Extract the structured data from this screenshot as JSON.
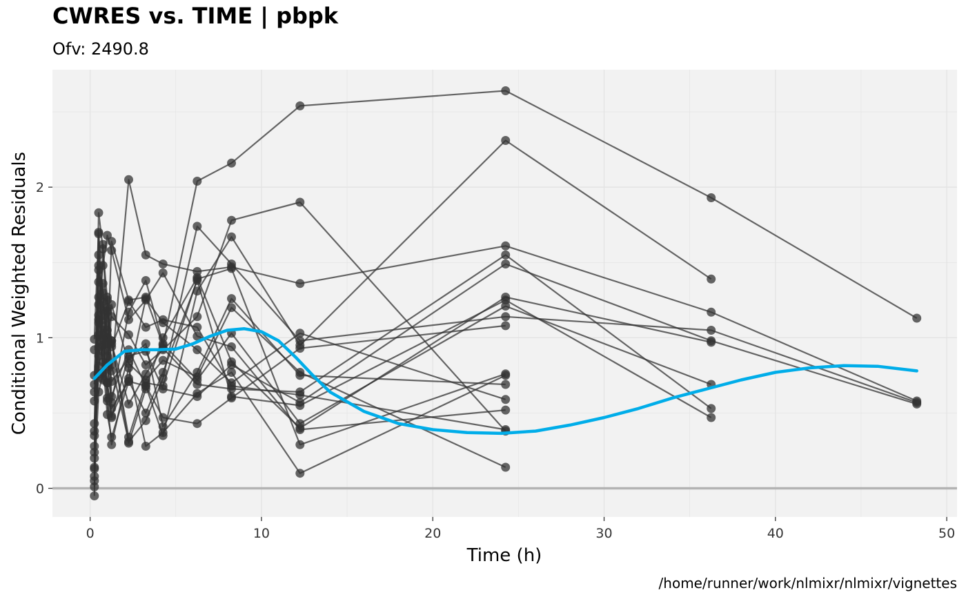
{
  "chart_data": {
    "type": "scatter",
    "title": "CWRES vs. TIME | pbpk",
    "subtitle": "Ofv: 2490.8",
    "xlabel": "Time (h)",
    "ylabel": "Conditional Weighted Residuals",
    "caption": "/home/runner/work/nlmixr/nlmixr/vignettes",
    "xlim": [
      -2.2,
      50.6
    ],
    "ylim": [
      -0.19,
      2.78
    ],
    "x_ticks": [
      0,
      10,
      20,
      30,
      40,
      50
    ],
    "y_ticks": [
      0,
      1,
      2
    ],
    "grid": true,
    "reference_line": {
      "y": 0,
      "color": "#b3b3b3"
    },
    "colors": {
      "points": "#333333",
      "lines": "#333333",
      "smooth": "#00ade9",
      "panel": "#f2f2f2",
      "grid": "#e3e3e3"
    },
    "times": [
      0.25,
      0.5,
      0.75,
      1,
      1.25,
      2.25,
      3.25,
      4.25,
      6.25,
      8.25,
      12.25,
      24.25,
      36.25,
      48.25
    ],
    "series": [
      {
        "values": [
          0.38,
          1.83,
          1.59,
          1.25,
          0.78,
          2.05,
          1.55,
          1.49,
          1.44,
          1.47,
          1.36,
          1.61,
          1.17,
          0.58
        ]
      },
      {
        "values": [
          0.75,
          1.45,
          1.3,
          0.83,
          1.64,
          1.25,
          1.27,
          0.95,
          2.04,
          2.16,
          2.54,
          2.64,
          1.93,
          1.13
        ]
      },
      {
        "values": [
          0.69,
          1.27,
          1.12,
          1.18,
          0.61,
          0.92,
          0.68,
          0.47,
          0.43,
          0.6,
          0.93,
          1.08
        ]
      },
      {
        "values": [
          0.99,
          1.7,
          1.18,
          1.0,
          0.53,
          0.71,
          0.68,
          0.35,
          1.31,
          1.67,
          0.95,
          2.31,
          1.39
        ]
      },
      {
        "values": [
          0.24,
          1.1,
          1.02,
          0.58,
          0.29,
          0.8,
          0.28,
          0.37,
          0.63,
          0.77,
          0.1,
          0.75
        ]
      },
      {
        "values": [
          0.64,
          1.02,
          0.84,
          0.49,
          0.34,
          0.71,
          0.5,
          0.77,
          1.38,
          0.61,
          0.55,
          1.25,
          0.47
        ]
      },
      {
        "values": [
          0.13,
          0.88,
          1.24,
          0.96,
          0.71,
          0.86,
          0.96,
          0.41,
          0.77,
          1.26,
          0.75,
          0.69
        ]
      },
      {
        "values": [
          0.43,
          0.81,
          0.95,
          1.27,
          0.94,
          1.24,
          1.07,
          1.12,
          1.07,
          0.68,
          0.62,
          0.39
        ]
      },
      {
        "values": [
          0.08,
          0.64,
          0.77,
          1.17,
          0.82,
          0.31,
          0.45,
          0.73,
          1.74,
          1.49,
          0.98,
          1.14,
          1.05,
          0.57
        ]
      },
      {
        "values": [
          0.2,
          1.12,
          1.36,
          0.81,
          0.57,
          1.17,
          1.38,
          0.96,
          0.72,
          1.03,
          0.43,
          1.21,
          0.69
        ]
      },
      {
        "values": [
          0.35,
          1.55,
          0.91,
          0.7,
          0.47,
          0.88,
          0.91,
          0.66,
          0.61,
          0.82,
          0.57,
          1.49,
          0.98,
          0.56
        ]
      },
      {
        "values": [
          0.92,
          0.94,
          1.05,
          1.05,
          1.14,
          1.02,
          0.82,
          0.92,
          1.14,
          1.78,
          1.9,
          0.38
        ]
      },
      {
        "values": [
          0.58,
          1.22,
          1.48,
          1.68,
          1.58,
          1.12,
          1.25,
          1.43,
          1.01,
          0.94,
          0.39,
          0.52
        ]
      },
      {
        "values": [
          0.28,
          0.76,
          1.62,
          1.0,
          0.96,
          0.56,
          0.76,
          0.93,
          0.69,
          0.66,
          0.64,
          1.55,
          0.53
        ]
      },
      {
        "values": [
          0.05,
          1.37,
          0.73,
          1.2,
          0.98,
          0.3,
          0.66,
          1.0,
          1.4,
          0.84,
          0.4,
          1.27,
          0.97
        ]
      },
      {
        "values": [
          0.01,
          1.15,
          0.99,
          0.6,
          1.22,
          0.83,
          0.72,
          0.85,
          0.74,
          1.2,
          0.77,
          0.14
        ]
      },
      {
        "values": [
          -0.05,
          1.48,
          1.08,
          0.7,
          0.48,
          0.73,
          1.26,
          1.1,
          0.92,
          0.7,
          1.03,
          0.59
        ]
      },
      {
        "values": [
          0.14,
          1.69,
          0.72,
          0.88,
          0.98,
          0.34,
          0.7,
          0.68,
          1.39,
          1.46,
          0.29,
          0.76
        ]
      }
    ],
    "smooth": {
      "x": [
        0.25,
        1,
        2,
        3,
        4,
        5,
        6,
        7,
        8,
        9,
        10,
        11,
        12,
        13,
        14,
        16,
        18,
        20,
        22,
        24,
        26,
        28,
        30,
        32,
        34,
        36,
        38,
        40,
        42,
        44,
        46,
        48.25
      ],
      "y": [
        0.73,
        0.82,
        0.91,
        0.92,
        0.92,
        0.925,
        0.96,
        1.01,
        1.05,
        1.06,
        1.04,
        0.98,
        0.87,
        0.75,
        0.64,
        0.51,
        0.43,
        0.39,
        0.37,
        0.365,
        0.38,
        0.42,
        0.47,
        0.53,
        0.6,
        0.66,
        0.72,
        0.77,
        0.8,
        0.815,
        0.81,
        0.78
      ]
    }
  }
}
